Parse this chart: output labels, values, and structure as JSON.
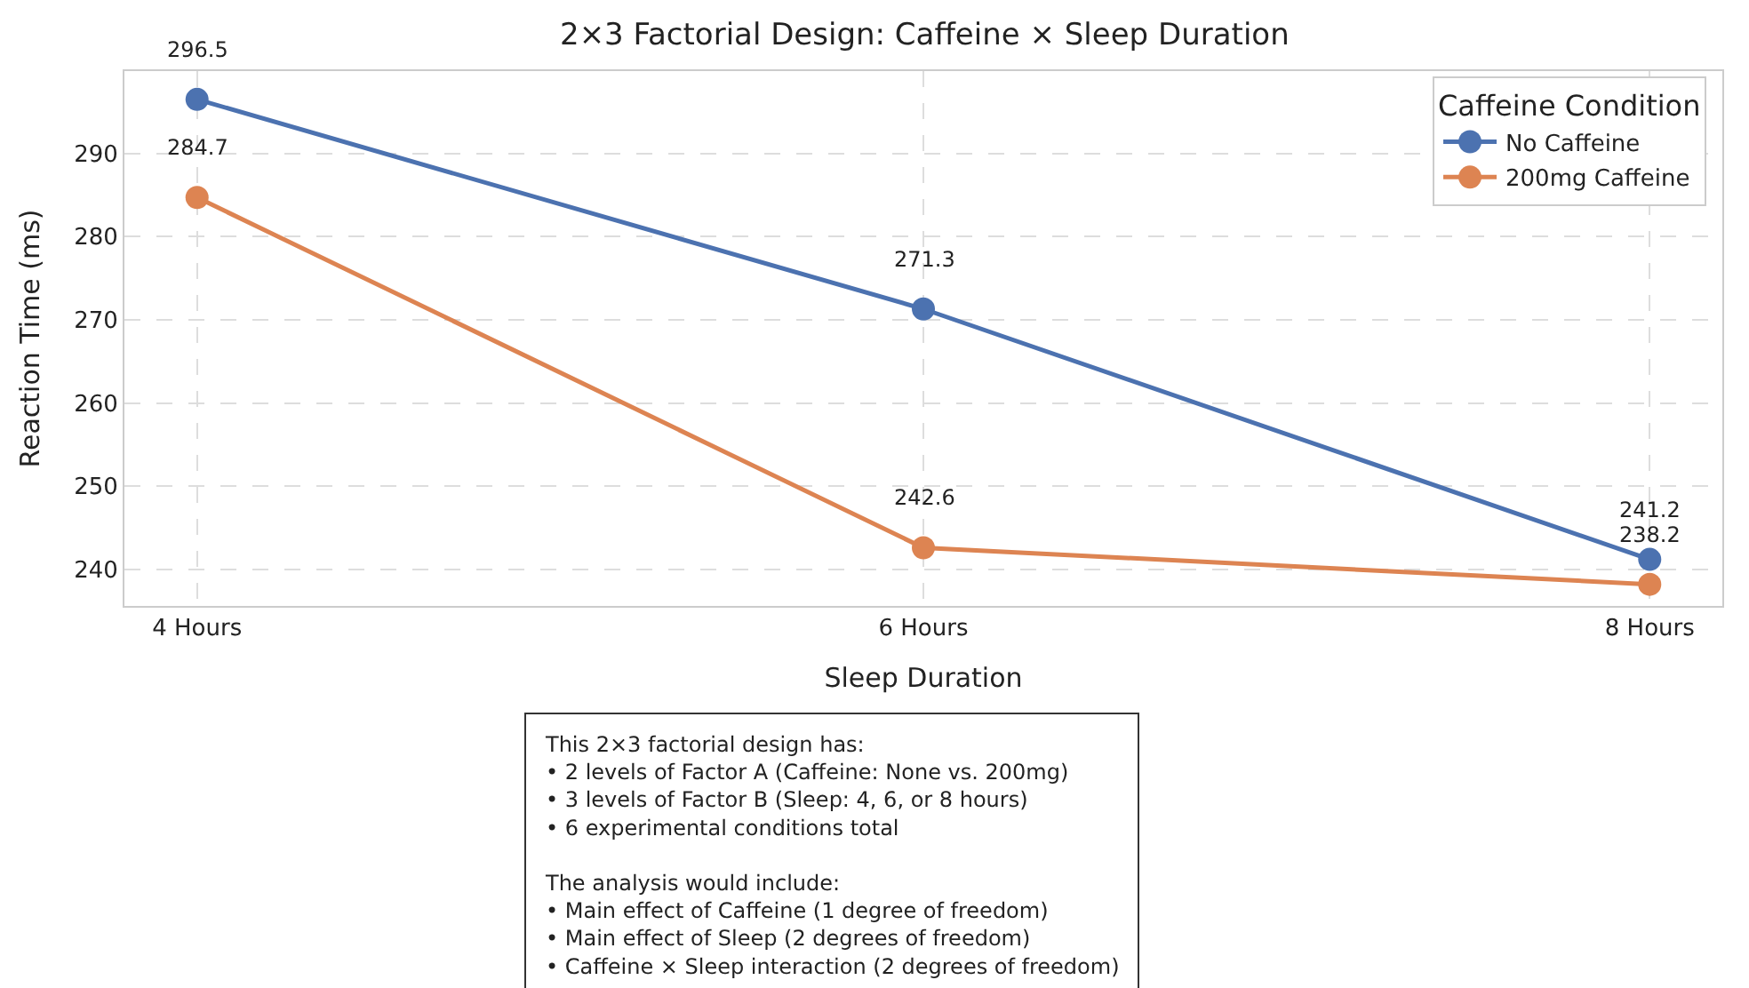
{
  "chart_data": {
    "type": "line",
    "title": "2×3 Factorial Design: Caffeine × Sleep Duration",
    "xlabel": "Sleep Duration",
    "ylabel": "Reaction Time (ms)",
    "legend_title": "Caffeine Condition",
    "categories": [
      "4 Hours",
      "6 Hours",
      "8 Hours"
    ],
    "series": [
      {
        "name": "No Caffeine",
        "color": "#4c72b0",
        "values": [
          296.5,
          271.3,
          241.2
        ]
      },
      {
        "name": "200mg Caffeine",
        "color": "#dd8452",
        "values": [
          284.7,
          242.6,
          238.2
        ]
      }
    ],
    "ylim": [
      235.6,
      299.9
    ],
    "yticks": [
      240,
      250,
      260,
      270,
      280,
      290
    ],
    "grid": true,
    "legend": "top right",
    "marker": "circle",
    "line_style": "solid",
    "data_labels": true,
    "annotations": [
      "This 2×3 factorial design has:\n• 2 levels of Factor A (Caffeine: None vs. 200mg)\n• 3 levels of Factor B (Sleep: 4, 6, or 8 hours)\n• 6 experimental conditions total\n\nThe analysis would include:\n• Main effect of Caffeine (1 degree of freedom)\n• Main effect of Sleep (2 degrees of freedom)\n• Caffeine × Sleep interaction (2 degrees of freedom)"
    ]
  }
}
